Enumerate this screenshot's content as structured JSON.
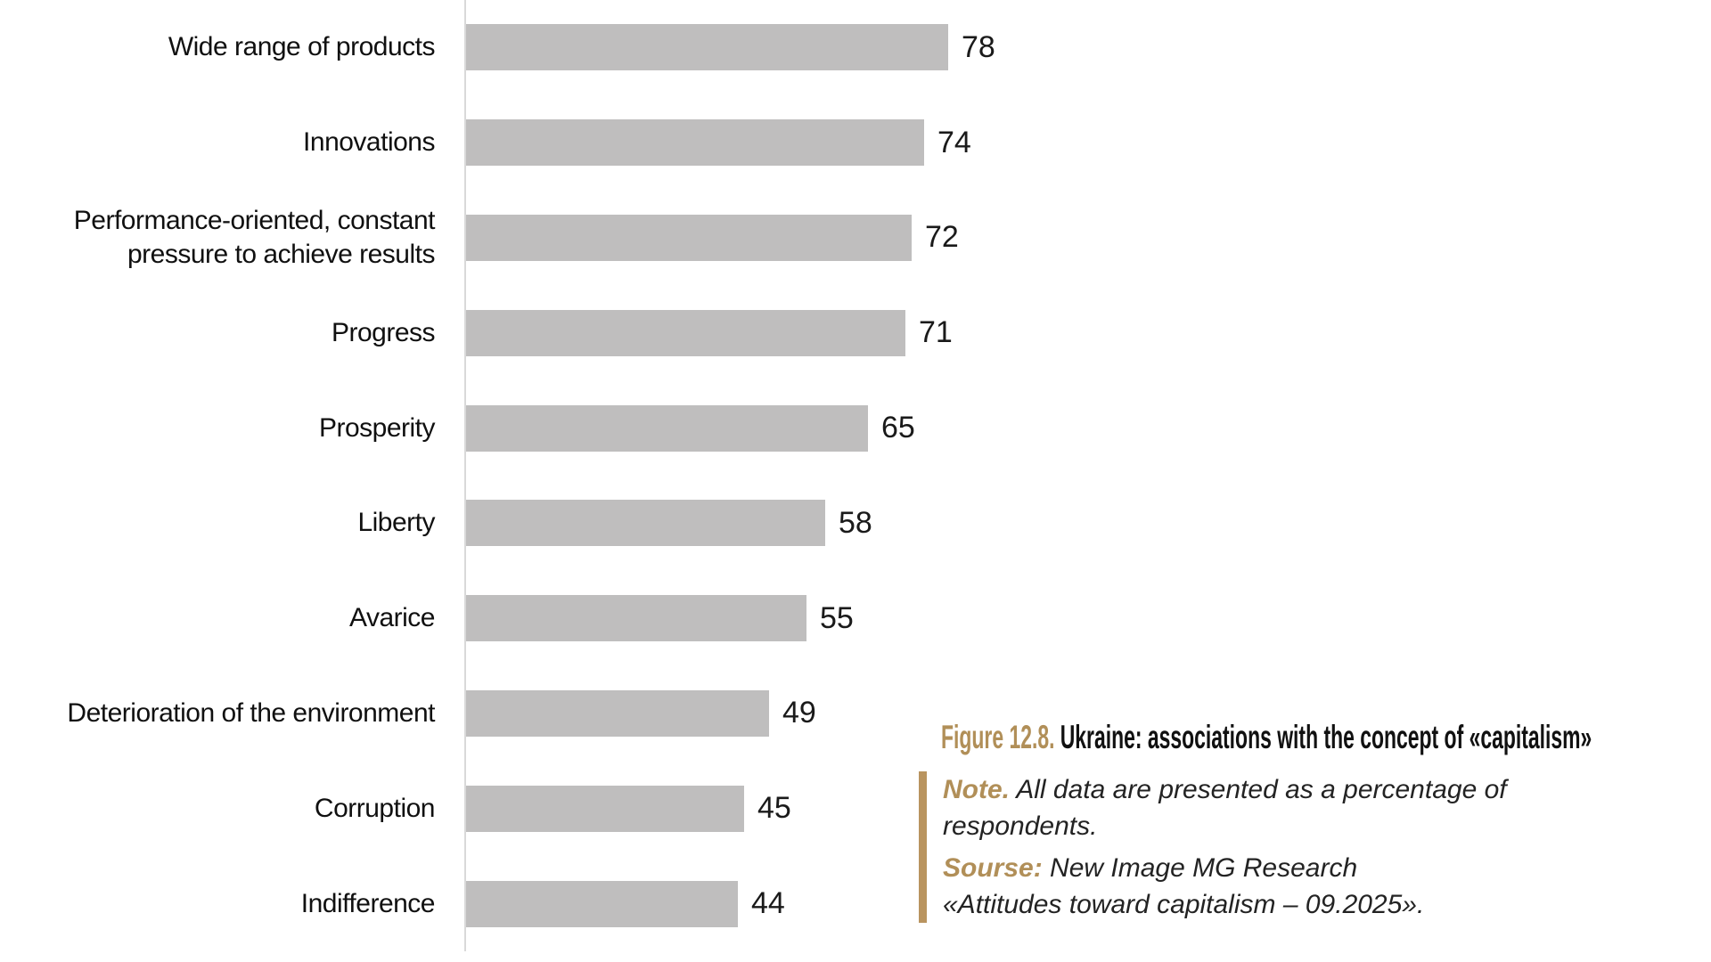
{
  "figure": {
    "label": "Figure 12.8.",
    "title": "Ukraine: associations with the concept of «capitalism»"
  },
  "note": {
    "label": "Note.",
    "text": "All data are presented as a percentage of respondents.",
    "source_label": "Sourse:",
    "source_line1": "New Image MG Research",
    "source_line2": "«Attitudes toward capitalism – 09.2025»."
  },
  "colors": {
    "accent_gold": "#b18f58",
    "note_bar_gold": "#b9945f",
    "bar_gray": "#bfbebe",
    "axis_gray": "#d9d9d9"
  },
  "chart_data": {
    "type": "bar",
    "orientation": "horizontal",
    "title": "Ukraine: associations with the concept of «capitalism»",
    "unit": "percentage of respondents",
    "categories": [
      "Wide range of products",
      "Innovations",
      "Performance-oriented, constant pressure to achieve results",
      "Progress",
      "Prosperity",
      "Liberty",
      "Avarice",
      "Deterioration of the environment",
      "Corruption",
      "Indifference"
    ],
    "values": [
      78,
      74,
      72,
      71,
      65,
      58,
      55,
      49,
      45,
      44
    ],
    "value_labels": true,
    "xlim": [
      0,
      100
    ],
    "grid": false,
    "legend": false
  }
}
